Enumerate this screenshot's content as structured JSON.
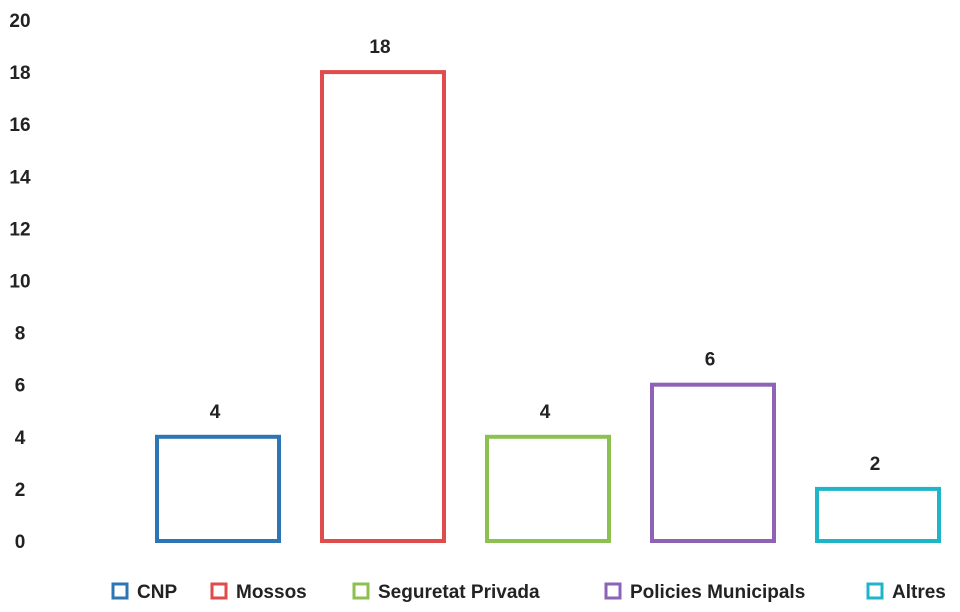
{
  "chart_data": {
    "type": "bar",
    "categories": [
      "CNP",
      "Mossos",
      "Seguretat Privada",
      "Policies Municipals",
      "Altres"
    ],
    "values": [
      4,
      18,
      4,
      6,
      2
    ],
    "colors": [
      "#2e75b6",
      "#e04b4b",
      "#8cc152",
      "#8e63b5",
      "#1fb5c9"
    ],
    "ylim": [
      0,
      20
    ],
    "yticks": [
      "0",
      "2",
      "4",
      "6",
      "8",
      "10",
      "12",
      "14",
      "16",
      "18",
      "20"
    ],
    "data_labels": [
      "4",
      "18",
      "4",
      "6",
      "2"
    ],
    "grid": false,
    "legend_position": "bottom",
    "bar_style": "outline"
  }
}
